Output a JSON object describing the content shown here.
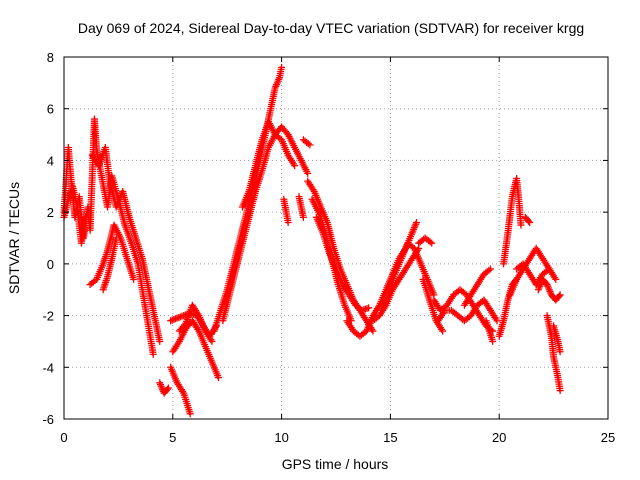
{
  "chart_data": {
    "type": "scatter",
    "title": "Day 069 of 2024, Sidereal Day-to-day VTEC variation (SDTVAR) for receiver krgg",
    "xlabel": "GPS time / hours",
    "ylabel": "SDTVAR / TECUs",
    "xlim": [
      0,
      25
    ],
    "ylim": [
      -6,
      8
    ],
    "xticks": [
      "0",
      "5",
      "10",
      "15",
      "20",
      "25"
    ],
    "yticks": [
      "-6",
      "-4",
      "-2",
      "0",
      "2",
      "4",
      "6",
      "8"
    ],
    "grid": true,
    "marker": "+",
    "color": "#ff0000",
    "series": [
      {
        "name": "SDTVAR",
        "segments": [
          [
            [
              0.0,
              2.0
            ],
            [
              0.2,
              4.5
            ],
            [
              0.3,
              3.5
            ],
            [
              0.5,
              1.8
            ],
            [
              0.7,
              2.6
            ],
            [
              0.9,
              1.0
            ],
            [
              1.1,
              2.2
            ],
            [
              1.2,
              1.3
            ],
            [
              1.4,
              5.6
            ],
            [
              1.5,
              4.4
            ],
            [
              1.7,
              3.5
            ],
            [
              2.0,
              2.2
            ],
            [
              2.2,
              3.4
            ],
            [
              2.5,
              2.5
            ],
            [
              2.8,
              1.5
            ],
            [
              3.1,
              0.8
            ],
            [
              3.4,
              0.0
            ],
            [
              3.7,
              -1.5
            ],
            [
              3.9,
              -2.5
            ],
            [
              4.1,
              -3.5
            ]
          ],
          [
            [
              0.0,
              1.8
            ],
            [
              0.2,
              2.5
            ],
            [
              0.4,
              3.0
            ],
            [
              0.6,
              2.2
            ],
            [
              0.8,
              0.8
            ],
            [
              1.0,
              1.8
            ]
          ],
          [
            [
              1.2,
              -0.8
            ],
            [
              1.5,
              -0.6
            ],
            [
              1.8,
              0.0
            ],
            [
              2.0,
              0.5
            ],
            [
              2.3,
              1.5
            ],
            [
              2.6,
              1.0
            ],
            [
              2.9,
              0.2
            ],
            [
              3.2,
              -0.6
            ]
          ],
          [
            [
              1.3,
              4.2
            ],
            [
              1.6,
              3.8
            ],
            [
              1.9,
              4.5
            ],
            [
              2.1,
              3.2
            ],
            [
              2.4,
              2.2
            ],
            [
              2.7,
              2.8
            ],
            [
              3.0,
              1.8
            ],
            [
              3.3,
              1.0
            ],
            [
              3.6,
              0.2
            ],
            [
              3.9,
              -1.0
            ],
            [
              4.2,
              -2.2
            ],
            [
              4.4,
              -3.0
            ]
          ],
          [
            [
              1.8,
              -1.0
            ],
            [
              2.0,
              -0.5
            ],
            [
              2.2,
              0.2
            ],
            [
              2.4,
              1.0
            ]
          ],
          [
            [
              4.4,
              -4.6
            ],
            [
              4.6,
              -5.0
            ],
            [
              4.8,
              -4.8
            ]
          ],
          [
            [
              4.9,
              -4.0
            ],
            [
              5.2,
              -4.6
            ],
            [
              5.5,
              -5.0
            ],
            [
              5.8,
              -5.8
            ]
          ],
          [
            [
              5.0,
              -3.4
            ],
            [
              5.3,
              -3.0
            ],
            [
              5.6,
              -2.5
            ],
            [
              5.9,
              -2.2
            ],
            [
              6.2,
              -2.6
            ],
            [
              6.5,
              -3.2
            ],
            [
              6.8,
              -3.8
            ],
            [
              7.1,
              -4.4
            ]
          ],
          [
            [
              4.9,
              -2.2
            ],
            [
              5.2,
              -2.1
            ],
            [
              5.5,
              -2.0
            ],
            [
              5.8,
              -1.9
            ],
            [
              6.1,
              -2.0
            ],
            [
              6.4,
              -2.4
            ],
            [
              6.7,
              -2.8
            ],
            [
              7.0,
              -2.4
            ]
          ],
          [
            [
              5.3,
              -2.6
            ],
            [
              5.6,
              -2.3
            ],
            [
              5.9,
              -1.6
            ],
            [
              6.2,
              -2.0
            ],
            [
              6.5,
              -2.6
            ],
            [
              6.8,
              -3.0
            ]
          ],
          [
            [
              6.9,
              -2.6
            ],
            [
              7.2,
              -1.8
            ],
            [
              7.5,
              -1.0
            ],
            [
              7.8,
              0.0
            ],
            [
              8.1,
              1.0
            ],
            [
              8.4,
              2.0
            ],
            [
              8.7,
              3.0
            ],
            [
              9.0,
              4.0
            ],
            [
              9.3,
              5.2
            ],
            [
              9.5,
              6.0
            ],
            [
              9.7,
              6.8
            ],
            [
              9.9,
              7.2
            ],
            [
              10.0,
              7.6
            ]
          ],
          [
            [
              7.3,
              -2.2
            ],
            [
              7.6,
              -1.2
            ],
            [
              7.9,
              -0.2
            ],
            [
              8.2,
              0.8
            ],
            [
              8.5,
              1.8
            ],
            [
              8.8,
              2.8
            ],
            [
              9.1,
              3.6
            ],
            [
              9.4,
              4.5
            ],
            [
              9.7,
              5.0
            ],
            [
              10.0,
              5.3
            ],
            [
              10.3,
              5.0
            ],
            [
              10.6,
              4.5
            ],
            [
              10.9,
              4.0
            ],
            [
              11.2,
              3.5
            ]
          ],
          [
            [
              8.2,
              2.2
            ],
            [
              8.5,
              2.8
            ],
            [
              8.8,
              3.8
            ],
            [
              9.1,
              4.8
            ],
            [
              9.4,
              5.5
            ],
            [
              9.7,
              5.0
            ],
            [
              10.0,
              4.8
            ],
            [
              10.3,
              4.2
            ],
            [
              10.6,
              3.8
            ]
          ],
          [
            [
              10.1,
              2.5
            ],
            [
              10.3,
              1.6
            ]
          ],
          [
            [
              10.8,
              2.6
            ],
            [
              11.0,
              1.8
            ]
          ],
          [
            [
              11.0,
              4.8
            ],
            [
              11.3,
              4.6
            ]
          ],
          [
            [
              11.2,
              3.2
            ],
            [
              11.5,
              2.8
            ],
            [
              11.8,
              2.2
            ],
            [
              12.1,
              1.6
            ],
            [
              12.4,
              0.6
            ],
            [
              12.7,
              -0.2
            ],
            [
              13.0,
              -0.8
            ],
            [
              13.3,
              -1.4
            ],
            [
              13.6,
              -1.8
            ],
            [
              13.9,
              -2.2
            ],
            [
              14.2,
              -2.6
            ]
          ],
          [
            [
              11.4,
              2.5
            ],
            [
              11.7,
              2.0
            ],
            [
              12.0,
              1.2
            ],
            [
              12.3,
              0.2
            ],
            [
              12.6,
              -0.8
            ],
            [
              12.9,
              -1.6
            ],
            [
              13.2,
              -2.2
            ]
          ],
          [
            [
              11.6,
              1.8
            ],
            [
              11.9,
              1.2
            ],
            [
              12.2,
              0.4
            ],
            [
              12.5,
              -0.2
            ],
            [
              12.8,
              -0.8
            ],
            [
              13.1,
              -1.2
            ],
            [
              13.4,
              -1.6
            ],
            [
              13.7,
              -1.8
            ],
            [
              14.0,
              -1.7
            ]
          ],
          [
            [
              13.0,
              -2.2
            ],
            [
              13.3,
              -2.6
            ],
            [
              13.6,
              -2.8
            ],
            [
              13.9,
              -2.6
            ],
            [
              14.2,
              -2.0
            ],
            [
              14.5,
              -1.6
            ],
            [
              14.8,
              -1.0
            ],
            [
              15.1,
              -0.4
            ],
            [
              15.4,
              0.2
            ],
            [
              15.7,
              0.6
            ],
            [
              16.0,
              1.2
            ],
            [
              16.2,
              1.6
            ]
          ],
          [
            [
              14.2,
              -2.2
            ],
            [
              14.5,
              -2.0
            ],
            [
              14.8,
              -1.6
            ],
            [
              15.1,
              -1.0
            ],
            [
              15.4,
              -0.6
            ],
            [
              15.7,
              -0.2
            ],
            [
              16.0,
              0.2
            ],
            [
              16.3,
              0.6
            ]
          ],
          [
            [
              14.6,
              -1.8
            ],
            [
              14.9,
              -1.2
            ],
            [
              15.2,
              -0.4
            ],
            [
              15.5,
              0.2
            ],
            [
              15.8,
              0.8
            ],
            [
              16.1,
              0.6
            ],
            [
              16.4,
              0.0
            ],
            [
              16.7,
              -0.6
            ],
            [
              17.0,
              -1.2
            ]
          ],
          [
            [
              16.3,
              0.8
            ],
            [
              16.6,
              1.0
            ],
            [
              16.9,
              0.8
            ]
          ],
          [
            [
              16.5,
              -0.6
            ],
            [
              16.8,
              -1.4
            ],
            [
              17.1,
              -2.2
            ],
            [
              17.4,
              -2.6
            ]
          ],
          [
            [
              17.0,
              -1.4
            ],
            [
              17.3,
              -1.8
            ],
            [
              17.6,
              -1.6
            ],
            [
              17.9,
              -1.2
            ],
            [
              18.2,
              -1.0
            ],
            [
              18.5,
              -1.2
            ],
            [
              18.8,
              -1.6
            ],
            [
              19.1,
              -2.0
            ],
            [
              19.4,
              -2.4
            ],
            [
              19.7,
              -2.6
            ]
          ],
          [
            [
              17.2,
              -2.2
            ],
            [
              17.5,
              -1.8
            ],
            [
              17.8,
              -1.8
            ],
            [
              18.1,
              -2.0
            ],
            [
              18.4,
              -2.2
            ],
            [
              18.7,
              -2.0
            ],
            [
              19.0,
              -1.6
            ],
            [
              19.3,
              -1.4
            ],
            [
              19.6,
              -1.8
            ],
            [
              19.9,
              -2.2
            ]
          ],
          [
            [
              18.4,
              -1.6
            ],
            [
              18.7,
              -1.2
            ],
            [
              19.0,
              -0.8
            ],
            [
              19.3,
              -0.4
            ],
            [
              19.6,
              -0.2
            ]
          ],
          [
            [
              19.4,
              -2.2
            ],
            [
              19.7,
              -3.0
            ]
          ],
          [
            [
              20.0,
              -2.8
            ],
            [
              20.2,
              -2.2
            ],
            [
              20.4,
              -1.4
            ],
            [
              20.6,
              -0.8
            ],
            [
              20.8,
              -0.6
            ]
          ],
          [
            [
              20.2,
              0.0
            ],
            [
              20.4,
              1.2
            ],
            [
              20.6,
              2.6
            ],
            [
              20.8,
              3.3
            ],
            [
              20.9,
              2.5
            ],
            [
              21.0,
              1.5
            ]
          ],
          [
            [
              20.5,
              -1.2
            ],
            [
              20.8,
              -0.6
            ],
            [
              21.1,
              -0.2
            ],
            [
              21.4,
              0.2
            ],
            [
              21.7,
              0.6
            ],
            [
              22.0,
              0.2
            ],
            [
              22.3,
              -0.2
            ],
            [
              22.6,
              -0.6
            ]
          ],
          [
            [
              20.8,
              -0.2
            ],
            [
              21.1,
              0.0
            ],
            [
              21.4,
              -0.4
            ],
            [
              21.7,
              -0.8
            ],
            [
              22.0,
              -0.4
            ],
            [
              22.3,
              -0.2
            ]
          ],
          [
            [
              21.2,
              1.8
            ],
            [
              21.4,
              1.6
            ]
          ],
          [
            [
              21.8,
              -1.0
            ],
            [
              22.0,
              -0.6
            ],
            [
              22.2,
              -0.8
            ],
            [
              22.4,
              -1.2
            ],
            [
              22.6,
              -1.4
            ],
            [
              22.8,
              -1.2
            ]
          ],
          [
            [
              22.2,
              -2.0
            ],
            [
              22.4,
              -2.8
            ],
            [
              22.5,
              -3.6
            ],
            [
              22.7,
              -4.4
            ],
            [
              22.8,
              -4.9
            ]
          ],
          [
            [
              22.5,
              -2.4
            ],
            [
              22.7,
              -3.0
            ],
            [
              22.8,
              -3.4
            ]
          ]
        ]
      }
    ]
  }
}
